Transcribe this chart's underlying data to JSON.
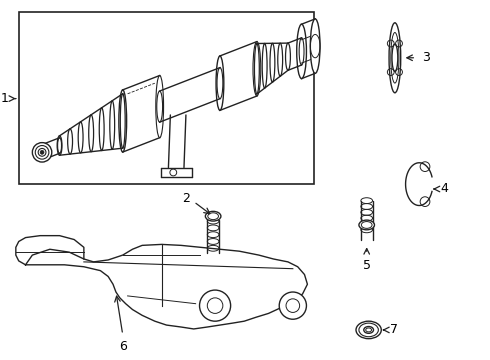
{
  "bg_color": "#ffffff",
  "line_color": "#222222",
  "line_width": 1.0,
  "fig_width": 4.9,
  "fig_height": 3.6
}
